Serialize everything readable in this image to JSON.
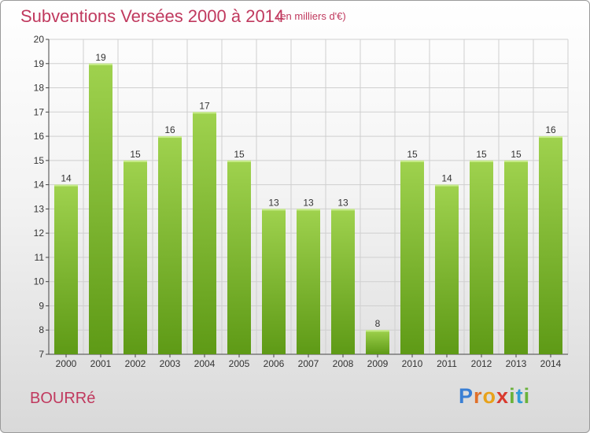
{
  "header": {
    "title": "Subventions Versées 2000 à 2014",
    "subtitle": "(en milliers d'€)"
  },
  "footer": {
    "commune": "BOURRé",
    "logo_text": "Proxiti",
    "logo_icon": "proxiti-logo"
  },
  "colors": {
    "title": "#c0395e",
    "bar_top": "#9fd24e",
    "bar_bottom": "#5e9a16",
    "grid": "#cfcfcf"
  },
  "chart_data": {
    "type": "bar",
    "title": "Subventions Versées 2000 à 2014",
    "subtitle": "(en milliers d'€)",
    "categories": [
      "2000",
      "2001",
      "2002",
      "2003",
      "2004",
      "2005",
      "2006",
      "2007",
      "2008",
      "2009",
      "2010",
      "2011",
      "2012",
      "2013",
      "2014"
    ],
    "values": [
      14,
      19,
      15,
      16,
      17,
      15,
      13,
      13,
      13,
      8,
      15,
      14,
      15,
      15,
      16
    ],
    "ylim": [
      7,
      20
    ],
    "yticks": [
      7,
      8,
      9,
      10,
      11,
      12,
      13,
      14,
      15,
      16,
      17,
      18,
      19,
      20
    ],
    "grid": true,
    "data_labels": true
  }
}
